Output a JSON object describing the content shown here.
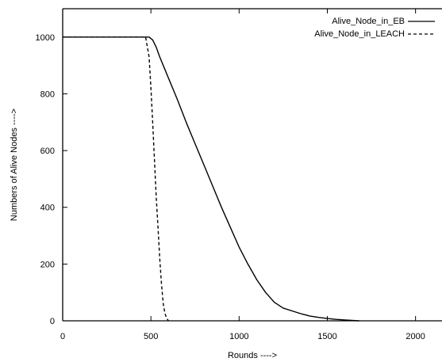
{
  "chart_data": {
    "type": "line",
    "title": "",
    "xlabel": "Rounds ---->",
    "ylabel": "Numbers of Alive Nodes ---->",
    "xlim": [
      0,
      2150
    ],
    "ylim": [
      0,
      1100
    ],
    "xticks": [
      0,
      500,
      1000,
      1500,
      2000
    ],
    "yticks": [
      0,
      200,
      400,
      600,
      800,
      1000
    ],
    "xtick_labels": [
      "0",
      "500",
      "1000",
      "1500",
      "2000"
    ],
    "ytick_labels": [
      "0",
      "200",
      "400",
      "600",
      "800",
      "1000"
    ],
    "grid": false,
    "legend_position": "top-right",
    "series": [
      {
        "name": "Alive_Node_in_EB",
        "style": "solid",
        "color": "#000000",
        "x": [
          0,
          490,
          510,
          530,
          550,
          600,
          650,
          700,
          750,
          800,
          850,
          900,
          950,
          1000,
          1050,
          1100,
          1150,
          1200,
          1250,
          1300,
          1350,
          1400,
          1450,
          1500,
          1550,
          1600,
          1650,
          1680
        ],
        "y": [
          1000,
          1000,
          990,
          965,
          930,
          855,
          780,
          700,
          625,
          550,
          475,
          400,
          330,
          260,
          200,
          145,
          100,
          65,
          45,
          35,
          25,
          17,
          12,
          8,
          5,
          3,
          1,
          0
        ]
      },
      {
        "name": "Alive_Node_in_LEACH",
        "style": "dashed",
        "color": "#000000",
        "x": [
          0,
          470,
          490,
          500,
          510,
          520,
          530,
          540,
          550,
          560,
          570,
          580,
          590,
          600
        ],
        "y": [
          1000,
          1000,
          930,
          820,
          700,
          570,
          440,
          330,
          220,
          130,
          60,
          25,
          8,
          0
        ]
      }
    ]
  }
}
